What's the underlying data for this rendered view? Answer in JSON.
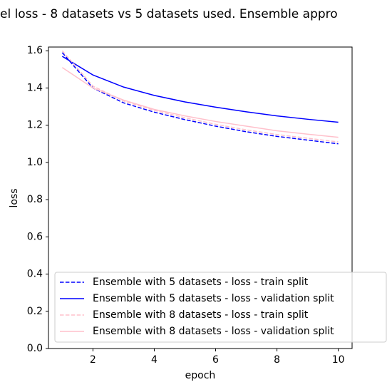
{
  "chart_data": {
    "type": "line",
    "title": "el loss - 8 datasets vs 5 datasets used. Ensemble  appro",
    "x_label": "epoch",
    "y_label": "loss",
    "x": [
      1,
      2,
      3,
      4,
      5,
      6,
      7,
      8,
      9,
      10
    ],
    "series": [
      {
        "name": "Ensemble with 5 datasets - loss - train split",
        "color": "#0000ff",
        "linestyle": "dashed",
        "values": [
          1.59,
          1.4,
          1.32,
          1.27,
          1.23,
          1.195,
          1.165,
          1.14,
          1.12,
          1.1
        ]
      },
      {
        "name": "Ensemble with 5 datasets - loss - validation split",
        "color": "#0000ff",
        "linestyle": "solid",
        "values": [
          1.57,
          1.47,
          1.405,
          1.36,
          1.325,
          1.297,
          1.272,
          1.25,
          1.232,
          1.216
        ]
      },
      {
        "name": "Ensemble with 8 datasets - loss - train split",
        "color": "#ffc0cb",
        "linestyle": "dashed",
        "values": [
          1.6,
          1.41,
          1.33,
          1.28,
          1.24,
          1.205,
          1.175,
          1.15,
          1.13,
          1.11
        ]
      },
      {
        "name": "Ensemble with 8 datasets - loss - validation split",
        "color": "#ffc0cb",
        "linestyle": "solid",
        "values": [
          1.51,
          1.4,
          1.335,
          1.285,
          1.25,
          1.22,
          1.195,
          1.17,
          1.152,
          1.135
        ]
      }
    ],
    "xlim": [
      0.55,
      10.45
    ],
    "xticks": [
      2,
      4,
      6,
      8,
      10
    ],
    "ylim": [
      0,
      1.62
    ],
    "yticks": [
      {
        "value": 0,
        "label": "0.0"
      },
      0.2,
      0.4,
      0.6,
      0.8,
      {
        "value": 1,
        "label": "1.0"
      },
      1.2,
      1.4,
      1.6
    ],
    "grid": false,
    "legend": "lower left"
  }
}
